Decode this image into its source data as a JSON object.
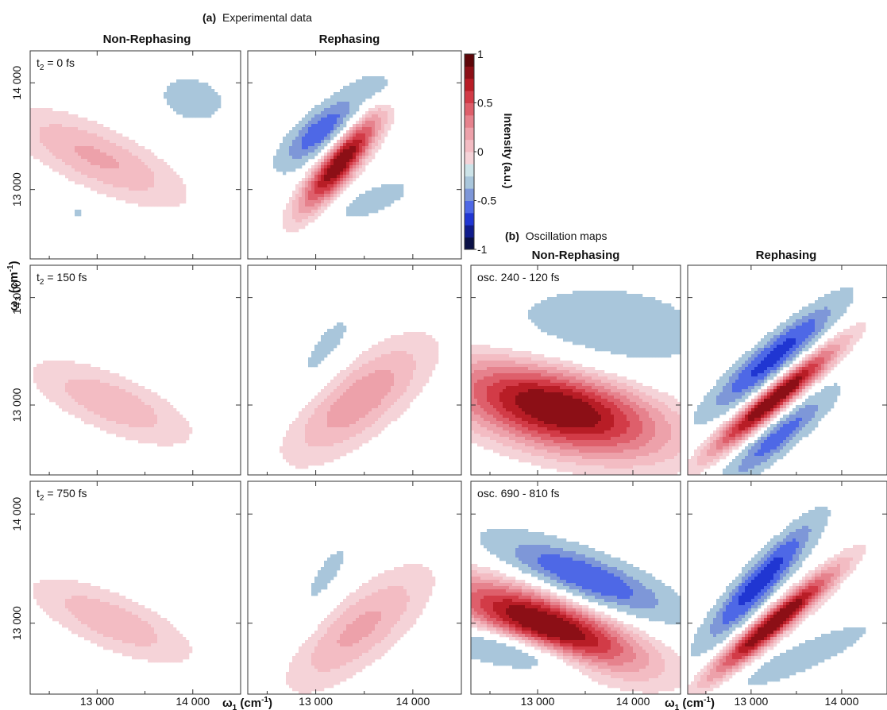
{
  "chart_data": {
    "type": "heatmap",
    "style": "filled contour plots",
    "section_a": {
      "label_letter": "(a)",
      "label_text": "Experimental data",
      "columns": [
        "Non-Rephasing",
        "Rephasing"
      ],
      "rows": [
        {
          "t2_label": "t",
          "t2_sub": "2",
          "t2_value": " = 0 fs"
        },
        {
          "t2_label": "t",
          "t2_sub": "2",
          "t2_value": " = 150 fs"
        },
        {
          "t2_label": "t",
          "t2_sub": "2",
          "t2_value": " = 750 fs"
        }
      ]
    },
    "section_b": {
      "label_letter": "(b)",
      "label_text": "Oscillation maps",
      "columns": [
        "Non-Rephasing",
        "Rephasing"
      ],
      "rows": [
        "osc. 240 - 120 fs",
        "osc. 690 - 810 fs"
      ]
    },
    "x_axis": {
      "label": "ω",
      "sub": "1",
      "unit": " (cm",
      "sup": "-1",
      "close": ")",
      "range": [
        12300,
        14500
      ],
      "ticks": [
        13000,
        14000
      ],
      "tick_labels": [
        "13 000",
        "14 000"
      ]
    },
    "y_axis": {
      "label": "ω",
      "sub": "3",
      "unit": " (cm",
      "sup": "-1",
      "close": ")",
      "range": [
        12350,
        14300
      ],
      "ticks": [
        13000,
        14000
      ],
      "tick_labels": [
        "13 000",
        "14 000"
      ]
    },
    "colorbar": {
      "title": "Intensity (a.u.)",
      "range": [
        -1,
        1
      ],
      "ticks": [
        1,
        0.5,
        0,
        -0.5,
        -1
      ],
      "tick_labels": [
        "1",
        "0.5",
        "0",
        "-0.5",
        "-1"
      ],
      "colors": [
        "#0a1045",
        "#101c8c",
        "#2036d2",
        "#4e68e6",
        "#7e97d8",
        "#a9c6db",
        "#cce3e8",
        "#f5d3d8",
        "#f3bcc3",
        "#eda1aa",
        "#e6828d",
        "#de5f6b",
        "#d23b47",
        "#b81d26",
        "#8c0f16",
        "#5e0609"
      ]
    },
    "panels": [
      {
        "id": "a-nr-0",
        "blobs": [
          {
            "x": 13000,
            "y": 13300,
            "sx": 700,
            "sy": 210,
            "angle": -22,
            "amp": 0.34
          },
          {
            "x": 14000,
            "y": 13850,
            "sx": 330,
            "sy": 200,
            "angle": -10,
            "amp": -0.18
          },
          {
            "x": 12800,
            "y": 12780,
            "sx": 130,
            "sy": 60,
            "angle": 0,
            "amp": -0.14
          }
        ]
      },
      {
        "id": "a-r-0",
        "blobs": [
          {
            "x": 13250,
            "y": 13250,
            "sx": 420,
            "sy": 115,
            "angle": 48,
            "amp": 0.95
          },
          {
            "x": 13050,
            "y": 13550,
            "sx": 330,
            "sy": 120,
            "angle": 38,
            "amp": -0.6
          },
          {
            "x": 13600,
            "y": 12900,
            "sx": 300,
            "sy": 100,
            "angle": 20,
            "amp": -0.22
          },
          {
            "x": 13750,
            "y": 13950,
            "sx": 260,
            "sy": 120,
            "angle": 0,
            "amp": -0.16
          }
        ]
      },
      {
        "id": "a-nr-150",
        "blobs": [
          {
            "x": 13150,
            "y": 13020,
            "sx": 650,
            "sy": 200,
            "angle": -20,
            "amp": 0.3
          }
        ]
      },
      {
        "id": "a-r-150",
        "blobs": [
          {
            "x": 13450,
            "y": 13050,
            "sx": 620,
            "sy": 240,
            "angle": 35,
            "amp": 0.4
          },
          {
            "x": 13100,
            "y": 13500,
            "sx": 420,
            "sy": 150,
            "angle": 50,
            "amp": -0.17
          }
        ]
      },
      {
        "id": "b-nr-osc1",
        "blobs": [
          {
            "x": 13200,
            "y": 12980,
            "sx": 820,
            "sy": 280,
            "angle": -12,
            "amp": 1.0
          },
          {
            "x": 13650,
            "y": 13650,
            "sx": 900,
            "sy": 380,
            "angle": 0,
            "amp": -0.22
          }
        ]
      },
      {
        "id": "b-r-osc1",
        "blobs": [
          {
            "x": 13250,
            "y": 13050,
            "sx": 600,
            "sy": 90,
            "angle": 35,
            "amp": 1.0
          },
          {
            "x": 13250,
            "y": 13450,
            "sx": 560,
            "sy": 110,
            "angle": 35,
            "amp": -0.75
          },
          {
            "x": 13300,
            "y": 12700,
            "sx": 480,
            "sy": 100,
            "angle": 35,
            "amp": -0.55
          }
        ]
      },
      {
        "id": "a-nr-750",
        "blobs": [
          {
            "x": 13150,
            "y": 13020,
            "sx": 650,
            "sy": 190,
            "angle": -20,
            "amp": 0.3
          }
        ]
      },
      {
        "id": "a-r-750",
        "blobs": [
          {
            "x": 13450,
            "y": 12950,
            "sx": 620,
            "sy": 230,
            "angle": 35,
            "amp": 0.35
          },
          {
            "x": 13100,
            "y": 13400,
            "sx": 420,
            "sy": 140,
            "angle": 55,
            "amp": -0.16
          }
        ]
      },
      {
        "id": "b-nr-osc2",
        "blobs": [
          {
            "x": 13100,
            "y": 12970,
            "sx": 750,
            "sy": 200,
            "angle": -18,
            "amp": 1.0
          },
          {
            "x": 13500,
            "y": 13420,
            "sx": 650,
            "sy": 150,
            "angle": -18,
            "amp": -0.65
          },
          {
            "x": 12800,
            "y": 12750,
            "sx": 550,
            "sy": 120,
            "angle": -10,
            "amp": -0.45
          }
        ]
      },
      {
        "id": "b-r-osc2",
        "blobs": [
          {
            "x": 13250,
            "y": 13000,
            "sx": 600,
            "sy": 90,
            "angle": 35,
            "amp": 1.0
          },
          {
            "x": 13100,
            "y": 13380,
            "sx": 520,
            "sy": 110,
            "angle": 42,
            "amp": -0.8
          },
          {
            "x": 13600,
            "y": 12700,
            "sx": 520,
            "sy": 90,
            "angle": 20,
            "amp": -0.3
          }
        ]
      }
    ]
  }
}
